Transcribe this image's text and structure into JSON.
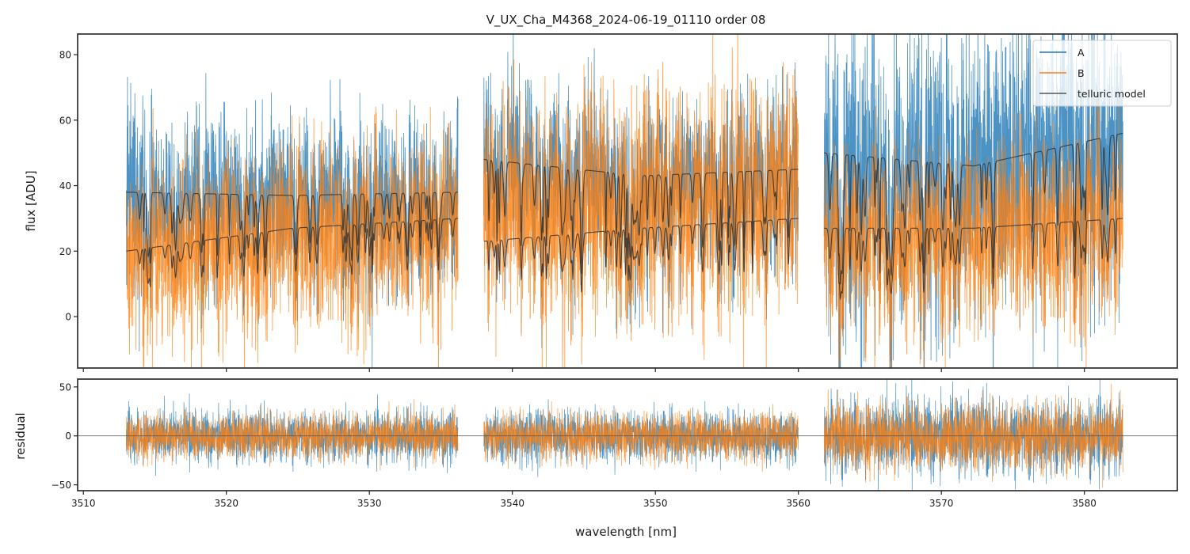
{
  "chart_data": [
    {
      "panel": "main",
      "type": "line",
      "title": "V_UX_Cha_M4368_2024-06-19_01110  order 08",
      "xlabel": "",
      "ylabel": "flux [ADU]",
      "xlim": [
        3509.6,
        3586.5
      ],
      "ylim": [
        -15.7,
        86.3
      ],
      "xticks": [
        3510,
        3520,
        3530,
        3540,
        3550,
        3560,
        3570,
        3580
      ],
      "yticks": [
        0,
        20,
        40,
        60,
        80
      ],
      "ytick_labels": [
        "0",
        "20",
        "40",
        "60",
        "80"
      ],
      "grid": false,
      "legend": {
        "placement": "top-right",
        "entries": [
          {
            "label": "A",
            "color": "#1f77b4"
          },
          {
            "label": "B",
            "color": "#ff7f0e"
          },
          {
            "label": "telluric model",
            "color": "#333333"
          }
        ]
      },
      "segments": [
        {
          "x_start": 3513.0,
          "x_end": 3536.2,
          "model_A_continuum": [
            38,
            37,
            38
          ],
          "model_B_continuum": [
            20,
            27,
            30
          ]
        },
        {
          "x_start": 3538.0,
          "x_end": 3560.0,
          "model_A_continuum": [
            48,
            43,
            45
          ],
          "model_B_continuum": [
            23,
            27,
            30
          ]
        },
        {
          "x_start": 3561.8,
          "x_end": 3582.7,
          "model_A_continuum": [
            50,
            46,
            56
          ],
          "model_B_continuum": [
            27,
            27,
            30
          ]
        }
      ],
      "series": [
        {
          "name": "A",
          "color": "#1f77b4",
          "typical_level": 40,
          "scatter": 20
        },
        {
          "name": "B",
          "color": "#ff7f0e",
          "typical_level": 28,
          "scatter": 18
        },
        {
          "name": "telluric model",
          "color": "#333333"
        }
      ]
    },
    {
      "panel": "residual",
      "type": "line",
      "xlabel": "wavelength [nm]",
      "ylabel": "residual",
      "xlim": [
        3509.6,
        3586.5
      ],
      "ylim": [
        -56,
        58
      ],
      "xticks": [
        3510,
        3520,
        3530,
        3540,
        3550,
        3560,
        3570,
        3580
      ],
      "xtick_labels": [
        "3510",
        "3520",
        "3530",
        "3540",
        "3550",
        "3560",
        "3570",
        "3580"
      ],
      "yticks": [
        -50,
        0,
        50
      ],
      "ytick_labels": [
        "−50",
        "0",
        "50"
      ],
      "zero_line": 0,
      "series": [
        {
          "name": "A",
          "color": "#1f77b4",
          "mean": 0,
          "scatter": 15
        },
        {
          "name": "B",
          "color": "#ff7f0e",
          "mean": 0,
          "scatter": 13
        }
      ]
    }
  ]
}
